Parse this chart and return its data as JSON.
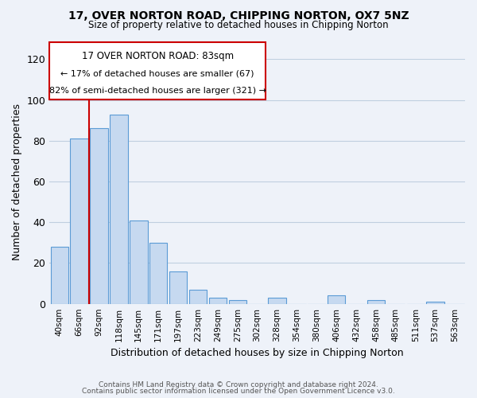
{
  "title": "17, OVER NORTON ROAD, CHIPPING NORTON, OX7 5NZ",
  "subtitle": "Size of property relative to detached houses in Chipping Norton",
  "xlabel": "Distribution of detached houses by size in Chipping Norton",
  "ylabel": "Number of detached properties",
  "bar_labels": [
    "40sqm",
    "66sqm",
    "92sqm",
    "118sqm",
    "145sqm",
    "171sqm",
    "197sqm",
    "223sqm",
    "249sqm",
    "275sqm",
    "302sqm",
    "328sqm",
    "354sqm",
    "380sqm",
    "406sqm",
    "432sqm",
    "458sqm",
    "485sqm",
    "511sqm",
    "537sqm",
    "563sqm"
  ],
  "bar_values": [
    28,
    81,
    86,
    93,
    41,
    30,
    16,
    7,
    3,
    2,
    0,
    3,
    0,
    0,
    4,
    0,
    2,
    0,
    0,
    1,
    0
  ],
  "bar_color": "#c6d9f0",
  "bar_edge_color": "#5b9bd5",
  "ylim": [
    0,
    120
  ],
  "yticks": [
    0,
    20,
    40,
    60,
    80,
    100,
    120
  ],
  "vline_x": 1.5,
  "vline_color": "#cc0000",
  "annotation_title": "17 OVER NORTON ROAD: 83sqm",
  "annotation_line1": "← 17% of detached houses are smaller (67)",
  "annotation_line2": "82% of semi-detached houses are larger (321) →",
  "annotation_box_color": "#cc0000",
  "footer_line1": "Contains HM Land Registry data © Crown copyright and database right 2024.",
  "footer_line2": "Contains public sector information licensed under the Open Government Licence v3.0.",
  "background_color": "#eef2f9",
  "grid_color": "#c0cfe0"
}
